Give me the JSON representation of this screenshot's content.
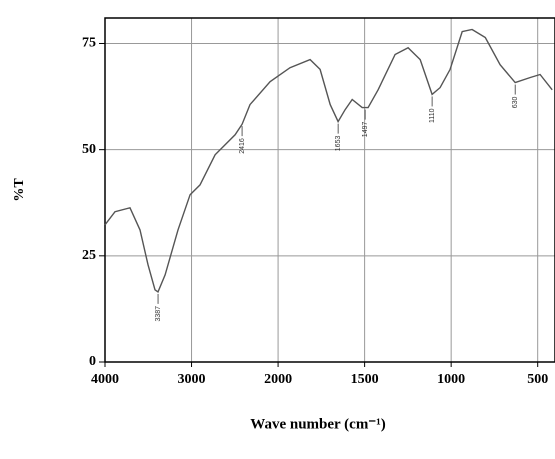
{
  "chart_data": {
    "type": "line",
    "x": [
      4000,
      3884,
      3711,
      3595,
      3503,
      3422,
      3387,
      3306,
      3156,
      3017,
      2902,
      2728,
      2497,
      2416,
      2324,
      2092,
      1931,
      1815,
      1757,
      1699,
      1653,
      1613,
      1572,
      1514,
      1480,
      1422,
      1324,
      1249,
      1179,
      1110,
      1064,
      1006,
      936,
      879,
      803,
      717,
      630,
      543,
      486,
      416
    ],
    "values": [
      32.3,
      35.4,
      36.3,
      31.1,
      22.9,
      17.0,
      16.5,
      20.5,
      31.1,
      39.4,
      41.7,
      48.8,
      53.5,
      56.0,
      60.6,
      66.0,
      69.3,
      71.2,
      68.9,
      60.6,
      56.6,
      59.4,
      61.8,
      59.9,
      59.9,
      64.1,
      72.4,
      74.0,
      71.2,
      63.0,
      64.6,
      68.9,
      77.8,
      78.3,
      76.4,
      70.0,
      65.8,
      67.0,
      67.7,
      64.1
    ],
    "color": "#555555",
    "xlabel": "Wave number (cm⁻¹)",
    "ylabel": "%T",
    "xlim": [
      4000,
      400
    ],
    "xscale_break": 2000,
    "xticks": [
      4000,
      3000,
      2000,
      1500,
      1000,
      500
    ],
    "ylim": [
      0,
      81
    ],
    "yticks": [
      0,
      25,
      50,
      75
    ],
    "grid": true,
    "annotations": [
      {
        "x": 3387,
        "y": 16.5,
        "label": "3387"
      },
      {
        "x": 2416,
        "y": 56.0,
        "label": "2416"
      },
      {
        "x": 1653,
        "y": 56.6,
        "label": "1653"
      },
      {
        "x": 1497,
        "y": 59.9,
        "label": "1497"
      },
      {
        "x": 1110,
        "y": 63.0,
        "label": "1110"
      },
      {
        "x": 630,
        "y": 65.8,
        "label": "630"
      }
    ]
  }
}
